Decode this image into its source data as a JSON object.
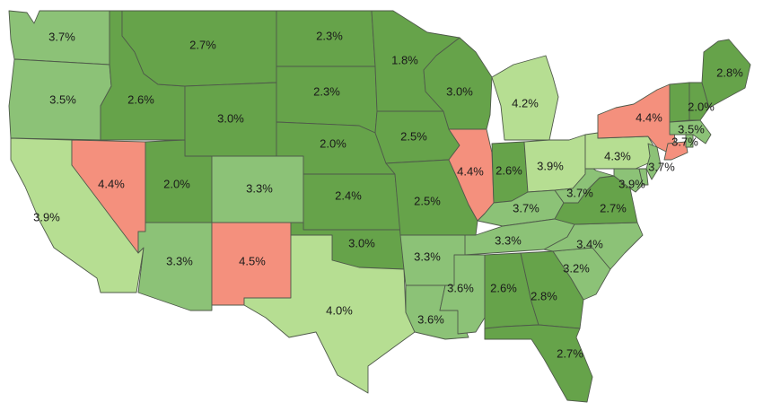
{
  "colors": {
    "dark_green": "#66a34a",
    "mid_green": "#8cc277",
    "light_green": "#b6de92",
    "salmon": "#f4907d",
    "border": "#4f5a4a"
  },
  "states": [
    {
      "code": "WA",
      "value": "3.7%",
      "color_key": "mid_green"
    },
    {
      "code": "OR",
      "value": "3.5%",
      "color_key": "mid_green"
    },
    {
      "code": "CA",
      "value": "3.9%",
      "color_key": "light_green"
    },
    {
      "code": "NV",
      "value": "4.4%",
      "color_key": "salmon"
    },
    {
      "code": "ID",
      "value": "2.6%",
      "color_key": "dark_green"
    },
    {
      "code": "MT",
      "value": "2.7%",
      "color_key": "dark_green"
    },
    {
      "code": "WY",
      "value": "3.0%",
      "color_key": "dark_green"
    },
    {
      "code": "UT",
      "value": "2.0%",
      "color_key": "dark_green"
    },
    {
      "code": "AZ",
      "value": "3.3%",
      "color_key": "mid_green"
    },
    {
      "code": "CO",
      "value": "3.3%",
      "color_key": "mid_green"
    },
    {
      "code": "NM",
      "value": "4.5%",
      "color_key": "salmon"
    },
    {
      "code": "ND",
      "value": "2.3%",
      "color_key": "dark_green"
    },
    {
      "code": "SD",
      "value": "2.3%",
      "color_key": "dark_green"
    },
    {
      "code": "NE",
      "value": "2.0%",
      "color_key": "dark_green"
    },
    {
      "code": "KS",
      "value": "2.4%",
      "color_key": "dark_green"
    },
    {
      "code": "OK",
      "value": "3.0%",
      "color_key": "dark_green"
    },
    {
      "code": "TX",
      "value": "4.0%",
      "color_key": "light_green"
    },
    {
      "code": "MN",
      "value": "1.8%",
      "color_key": "dark_green"
    },
    {
      "code": "IA",
      "value": "2.5%",
      "color_key": "dark_green"
    },
    {
      "code": "MO",
      "value": "2.5%",
      "color_key": "dark_green"
    },
    {
      "code": "AR",
      "value": "3.3%",
      "color_key": "mid_green"
    },
    {
      "code": "LA",
      "value": "3.6%",
      "color_key": "mid_green"
    },
    {
      "code": "WI",
      "value": "3.0%",
      "color_key": "dark_green"
    },
    {
      "code": "IL",
      "value": "4.4%",
      "color_key": "salmon"
    },
    {
      "code": "MI",
      "value": "4.2%",
      "color_key": "light_green"
    },
    {
      "code": "IN",
      "value": "2.6%",
      "color_key": "dark_green"
    },
    {
      "code": "OH",
      "value": "3.9%",
      "color_key": "light_green"
    },
    {
      "code": "KY",
      "value": "3.7%",
      "color_key": "mid_green"
    },
    {
      "code": "TN",
      "value": "3.3%",
      "color_key": "mid_green"
    },
    {
      "code": "MS",
      "value": "3.6%",
      "color_key": "mid_green"
    },
    {
      "code": "AL",
      "value": "2.6%",
      "color_key": "dark_green"
    },
    {
      "code": "GA",
      "value": "2.8%",
      "color_key": "dark_green"
    },
    {
      "code": "FL",
      "value": "2.7%",
      "color_key": "dark_green"
    },
    {
      "code": "SC",
      "value": "3.2%",
      "color_key": "mid_green"
    },
    {
      "code": "NC",
      "value": "3.4%",
      "color_key": "mid_green"
    },
    {
      "code": "VA",
      "value": "2.7%",
      "color_key": "dark_green"
    },
    {
      "code": "WV",
      "value": "3.7%",
      "color_key": "mid_green"
    },
    {
      "code": "PA",
      "value": "4.3%",
      "color_key": "light_green"
    },
    {
      "code": "MD",
      "value": "3.9%",
      "color_key": "mid_green"
    },
    {
      "code": "DE",
      "value": "",
      "color_key": "mid_green"
    },
    {
      "code": "NJ",
      "value": "3.7%",
      "color_key": "mid_green"
    },
    {
      "code": "NY",
      "value": "4.4%",
      "color_key": "salmon"
    },
    {
      "code": "CT",
      "value": "3.7%",
      "color_key": "salmon"
    },
    {
      "code": "RI",
      "value": "",
      "color_key": "mid_green"
    },
    {
      "code": "MA",
      "value": "3.5%",
      "color_key": "mid_green"
    },
    {
      "code": "VT",
      "value": "",
      "color_key": "dark_green"
    },
    {
      "code": "NH",
      "value": "2.0%",
      "color_key": "dark_green"
    },
    {
      "code": "ME",
      "value": "2.8%",
      "color_key": "dark_green"
    }
  ]
}
